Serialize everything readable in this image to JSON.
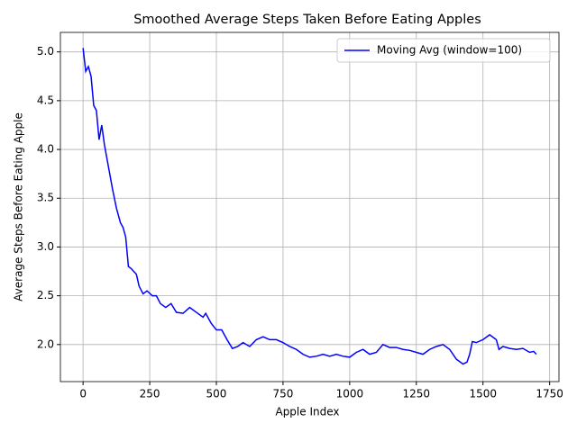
{
  "chart_data": {
    "type": "line",
    "title": "Smoothed Average Steps Taken Before Eating Apples",
    "x_label": "Apple Index",
    "y_label": "Average Steps Before Eating Apple",
    "x": [
      0,
      10,
      20,
      30,
      40,
      50,
      60,
      70,
      80,
      90,
      100,
      110,
      125,
      140,
      150,
      160,
      170,
      180,
      200,
      210,
      225,
      240,
      260,
      275,
      290,
      310,
      330,
      350,
      375,
      400,
      425,
      450,
      460,
      480,
      500,
      520,
      540,
      560,
      580,
      600,
      625,
      650,
      675,
      700,
      725,
      750,
      775,
      800,
      825,
      850,
      875,
      900,
      925,
      950,
      975,
      1000,
      1025,
      1050,
      1075,
      1100,
      1125,
      1150,
      1175,
      1200,
      1225,
      1250,
      1275,
      1300,
      1325,
      1350,
      1375,
      1400,
      1425,
      1440,
      1450,
      1460,
      1475,
      1500,
      1525,
      1550,
      1560,
      1575,
      1600,
      1625,
      1650,
      1675,
      1690,
      1700
    ],
    "series": [
      {
        "name": "Moving Avg (window=100)",
        "color": "#0000ff",
        "values": [
          5.04,
          4.8,
          4.85,
          4.75,
          4.45,
          4.4,
          4.1,
          4.25,
          4.05,
          3.9,
          3.75,
          3.6,
          3.4,
          3.25,
          3.2,
          3.1,
          2.8,
          2.78,
          2.72,
          2.6,
          2.52,
          2.55,
          2.5,
          2.5,
          2.42,
          2.38,
          2.42,
          2.33,
          2.32,
          2.38,
          2.33,
          2.28,
          2.32,
          2.22,
          2.15,
          2.15,
          2.05,
          1.96,
          1.98,
          2.02,
          1.98,
          2.05,
          2.08,
          2.05,
          2.05,
          2.02,
          1.98,
          1.95,
          1.9,
          1.87,
          1.88,
          1.9,
          1.88,
          1.9,
          1.88,
          1.87,
          1.92,
          1.95,
          1.9,
          1.92,
          2.0,
          1.97,
          1.97,
          1.95,
          1.94,
          1.92,
          1.9,
          1.95,
          1.98,
          2.0,
          1.95,
          1.85,
          1.8,
          1.82,
          1.9,
          2.03,
          2.02,
          2.05,
          2.1,
          2.05,
          1.95,
          1.98,
          1.96,
          1.95,
          1.96,
          1.92,
          1.93,
          1.9
        ]
      }
    ],
    "xlim": [
      -85,
      1785
    ],
    "ylim": [
      1.62,
      5.2
    ],
    "xticks": [
      0,
      250,
      500,
      750,
      1000,
      1250,
      1500,
      1750
    ],
    "yticks": [
      {
        "value": 2,
        "label": "2.0"
      },
      2.5,
      {
        "value": 3,
        "label": "3.0"
      },
      3.5,
      {
        "value": 4,
        "label": "4.0"
      },
      4.5,
      {
        "value": 5,
        "label": "5.0"
      }
    ],
    "grid": true,
    "legend": "upper-right"
  }
}
